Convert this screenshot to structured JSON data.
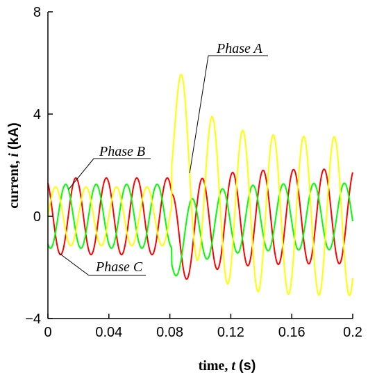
{
  "chart_data": {
    "type": "line",
    "title": "",
    "xlabel": {
      "prefix": "time,",
      "symbol": "t",
      "unit": "(s)"
    },
    "ylabel": {
      "prefix": "current,",
      "symbol": "i",
      "unit": "(kA)"
    },
    "xlim": [
      0,
      0.2
    ],
    "ylim": [
      -4,
      8
    ],
    "xticks": [
      0,
      0.04,
      0.08,
      0.12,
      0.16,
      0.2
    ],
    "xtick_labels": [
      "0",
      "0.04",
      "0.08",
      "0.12",
      "0.16",
      "0.2"
    ],
    "yticks": [
      -4,
      0,
      4,
      8
    ],
    "ytick_labels": [
      "−4",
      "0",
      "4",
      "8"
    ],
    "grid": false,
    "legend": "none",
    "fault_time": 0.0812,
    "frequency_hz": 50,
    "series": [
      {
        "name": "Phase A",
        "color": "#ffff00",
        "pre_fault_peak": 1.15,
        "post_fault_peak": 3.1,
        "dc_offset_initial": 3.5,
        "dc_time_constant": 0.018
      },
      {
        "name": "Phase B",
        "color": "#00ff00",
        "pre_fault_peak": 1.25,
        "post_fault_peak": 1.3,
        "dc_offset_initial": -1.2,
        "dc_time_constant": 0.02
      },
      {
        "name": "Phase C",
        "color": "#ff0000",
        "pre_fault_peak": 1.5,
        "post_fault_peak": 1.85,
        "dc_offset_initial": -1.0,
        "dc_time_constant": 0.02
      }
    ],
    "annotations": [
      {
        "text": "Phase A",
        "series": "Phase A",
        "at_x": 0.093
      },
      {
        "text": "Phase B",
        "series": "Phase B",
        "at_x": 0.0135
      },
      {
        "text": "Phase C",
        "series": "Phase C",
        "at_x": 0.0075
      }
    ]
  }
}
